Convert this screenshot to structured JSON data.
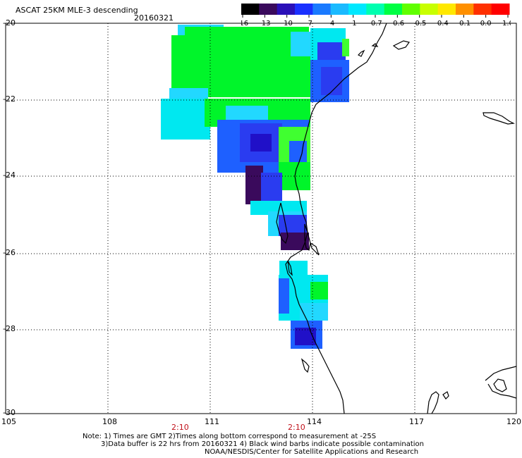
{
  "header": {
    "title": "ASCAT 25KM MLE-3 descending",
    "date": "20160321"
  },
  "colorbar": {
    "tick_labels": [
      "-16",
      "-13",
      "-10",
      "-7",
      "-4",
      "-1",
      "-0.7",
      "-0.6",
      "-0.5",
      "-0.4",
      "-0.1",
      "0.0",
      "1.0"
    ],
    "colors": [
      "#000000",
      "#3a0a5c",
      "#2a10b8",
      "#1a30ff",
      "#1a7aff",
      "#1abaff",
      "#00e8ff",
      "#00ffb0",
      "#00ff44",
      "#60ff00",
      "#c8ff00",
      "#ffe800",
      "#ff9000",
      "#ff3000",
      "#ff0000"
    ]
  },
  "axes": {
    "lat_labels": [
      "-20",
      "-22",
      "-24",
      "-26",
      "-28",
      "-30"
    ],
    "lon_labels": [
      "105",
      "108",
      "111",
      "114",
      "117",
      "120"
    ],
    "time_labels": [
      "2:10",
      "2:10"
    ]
  },
  "data_colors": {
    "green": "#00f52a",
    "light_green": "#40ff30",
    "cyan": "#00e8f0",
    "light_cyan": "#22d8ff",
    "blue": "#1e60ff",
    "medium_blue": "#2a3cf0",
    "dark_blue": "#2010c8",
    "purple": "#3a0a5c"
  },
  "notes": {
    "line1": "Note: 1) Times are GMT 2)Times along bottom correspond to measurement at -25S",
    "line2": "3)Data buffer is 22 hrs from 20160321 4) Black wind barbs indicate possible contamination",
    "line3": "NOAA/NESDIS/Center for Satellite Applications and Research"
  }
}
